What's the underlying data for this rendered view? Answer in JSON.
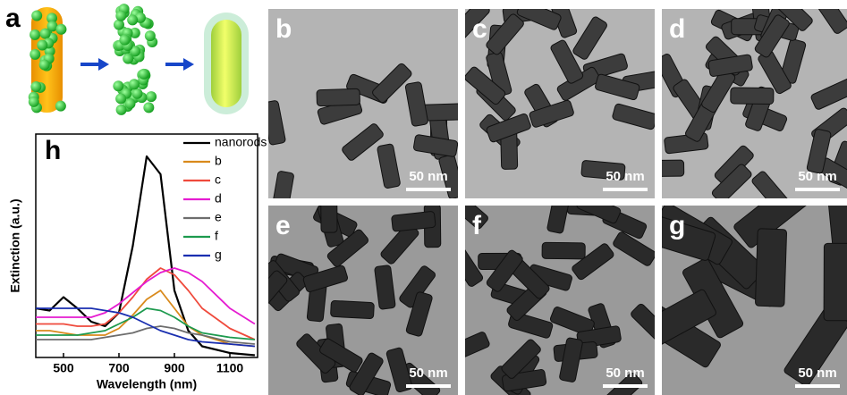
{
  "panel_a": {
    "label": "a"
  },
  "panels": [
    {
      "label": "b",
      "scale": "50 nm"
    },
    {
      "label": "c",
      "scale": "50 nm"
    },
    {
      "label": "d",
      "scale": "50 nm"
    },
    {
      "label": "e",
      "scale": "50 nm"
    },
    {
      "label": "f",
      "scale": "50 nm"
    },
    {
      "label": "g",
      "scale": "50 nm"
    }
  ],
  "chart_data": {
    "type": "line",
    "panel_label": "h",
    "x_label": "Wavelength (nm)",
    "y_label": "Extinction (a.u.)",
    "x": [
      400,
      450,
      500,
      550,
      600,
      650,
      700,
      750,
      800,
      850,
      900,
      950,
      1000,
      1100,
      1190
    ],
    "xlim": [
      400,
      1200
    ],
    "xticks": [
      500,
      700,
      900,
      1100
    ],
    "ylim": [
      0,
      1
    ],
    "series": [
      {
        "name": "nanorods",
        "color": "#000000",
        "values": [
          0.22,
          0.21,
          0.27,
          0.22,
          0.16,
          0.14,
          0.2,
          0.5,
          0.9,
          0.82,
          0.3,
          0.12,
          0.05,
          0.02,
          0.01
        ]
      },
      {
        "name": "b",
        "color": "#d98a1c",
        "values": [
          0.12,
          0.12,
          0.11,
          0.1,
          0.1,
          0.1,
          0.13,
          0.19,
          0.26,
          0.3,
          0.22,
          0.14,
          0.1,
          0.06,
          0.05
        ]
      },
      {
        "name": "c",
        "color": "#ef4a3c",
        "values": [
          0.15,
          0.15,
          0.15,
          0.14,
          0.14,
          0.15,
          0.2,
          0.27,
          0.35,
          0.4,
          0.37,
          0.3,
          0.22,
          0.13,
          0.08
        ]
      },
      {
        "name": "d",
        "color": "#e51cd1",
        "values": [
          0.18,
          0.18,
          0.18,
          0.18,
          0.18,
          0.2,
          0.24,
          0.29,
          0.34,
          0.38,
          0.4,
          0.38,
          0.34,
          0.22,
          0.15
        ]
      },
      {
        "name": "e",
        "color": "#6d6d6d",
        "values": [
          0.08,
          0.08,
          0.08,
          0.08,
          0.08,
          0.09,
          0.1,
          0.11,
          0.13,
          0.14,
          0.13,
          0.11,
          0.1,
          0.07,
          0.06
        ]
      },
      {
        "name": "f",
        "color": "#1d9a4e",
        "values": [
          0.1,
          0.1,
          0.1,
          0.1,
          0.11,
          0.12,
          0.15,
          0.18,
          0.22,
          0.21,
          0.18,
          0.14,
          0.11,
          0.09,
          0.08
        ]
      },
      {
        "name": "g",
        "color": "#1a2fb0",
        "values": [
          0.22,
          0.22,
          0.22,
          0.22,
          0.22,
          0.21,
          0.2,
          0.18,
          0.15,
          0.12,
          0.1,
          0.08,
          0.07,
          0.06,
          0.05
        ]
      }
    ]
  }
}
